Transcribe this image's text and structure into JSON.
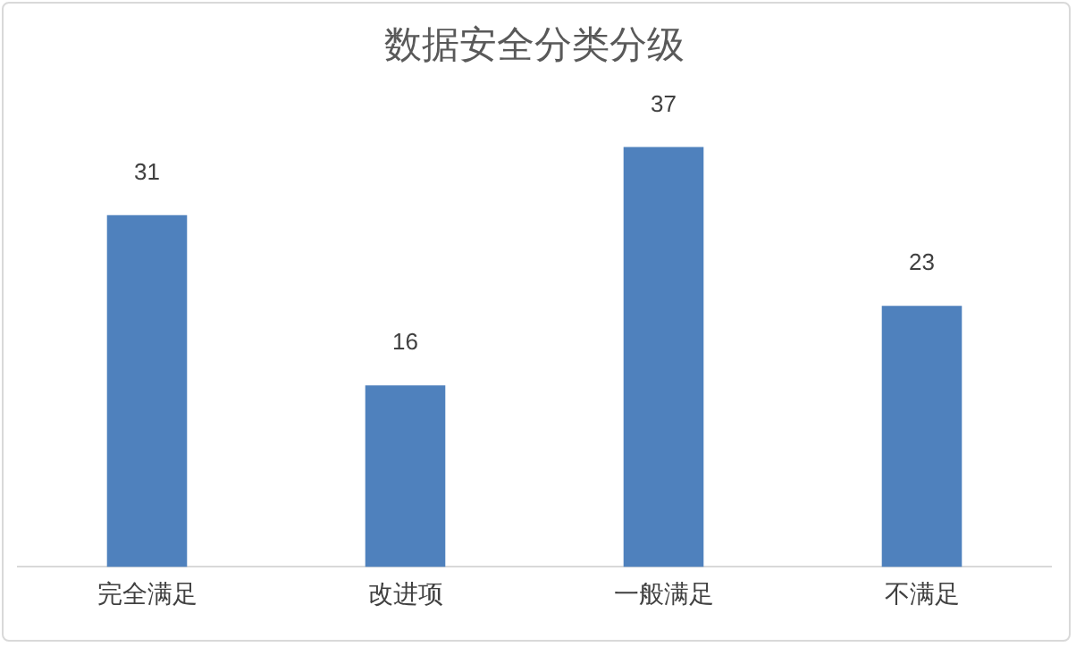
{
  "chart_data": {
    "type": "bar",
    "title": "数据安全分类分级",
    "categories": [
      "完全满足",
      "改进项",
      "一般满足",
      "不满足"
    ],
    "values": [
      31,
      16,
      37,
      23
    ],
    "color": "#4f81bd",
    "data_labels": true,
    "tick_labels": "x",
    "grid": false,
    "legend": false
  }
}
